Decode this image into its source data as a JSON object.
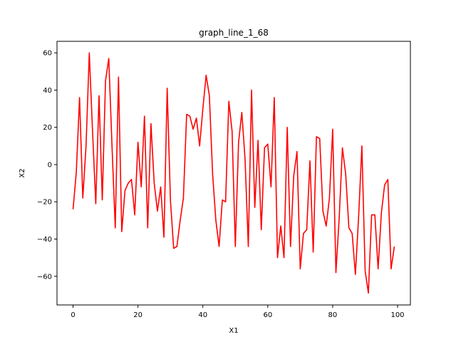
{
  "chart_data": {
    "type": "line",
    "title": "graph_line_1_68",
    "xlabel": "X1",
    "ylabel": "X2",
    "xlim": [
      -4.95,
      103.95
    ],
    "ylim": [
      -75.4,
      66.2
    ],
    "xticks": [
      0,
      20,
      40,
      60,
      80,
      100
    ],
    "yticks": [
      -60,
      -40,
      -20,
      0,
      20,
      40,
      60
    ],
    "grid": false,
    "legend": "none",
    "series": [
      {
        "color": "#ff0000",
        "x": [
          0,
          1,
          2,
          3,
          4,
          5,
          6,
          7,
          8,
          9,
          10,
          11,
          12,
          13,
          14,
          15,
          16,
          17,
          18,
          19,
          20,
          21,
          22,
          23,
          24,
          25,
          26,
          27,
          28,
          29,
          30,
          31,
          32,
          33,
          34,
          35,
          36,
          37,
          38,
          39,
          40,
          41,
          42,
          43,
          44,
          45,
          46,
          47,
          48,
          49,
          50,
          51,
          52,
          53,
          54,
          55,
          56,
          57,
          58,
          59,
          60,
          61,
          62,
          63,
          64,
          65,
          66,
          67,
          68,
          69,
          70,
          71,
          72,
          73,
          74,
          75,
          76,
          77,
          78,
          79,
          80,
          81,
          82,
          83,
          84,
          85,
          86,
          87,
          88,
          89,
          90,
          91,
          92,
          93,
          94,
          95,
          96,
          97,
          98,
          99
        ],
        "y": [
          -24,
          -4,
          36,
          -18,
          10,
          60,
          18,
          -21,
          37,
          -19,
          45,
          57,
          10,
          -34,
          47,
          -36,
          -14,
          -10,
          -8,
          -27,
          12,
          -12,
          26,
          -34,
          22,
          -10,
          -25,
          -12,
          -39,
          41,
          -19,
          -45,
          -44,
          -30,
          -18,
          27,
          26,
          19,
          25,
          10,
          30,
          48,
          37,
          -5,
          -30,
          -44,
          -19,
          -20,
          34,
          18,
          -44,
          12,
          28,
          3,
          -44,
          40,
          -23,
          13,
          -35,
          9,
          11,
          -12,
          36,
          -50,
          -33,
          -50,
          20,
          -44,
          -6,
          7,
          -56,
          -37,
          -35,
          2,
          -47,
          15,
          14,
          -25,
          -33,
          -18,
          19,
          -58,
          -29,
          9,
          -5,
          -34,
          -37,
          -59,
          -28,
          10,
          -57,
          -69,
          -27,
          -27,
          -56,
          -26,
          -11,
          -8,
          -56,
          -44
        ]
      }
    ]
  }
}
